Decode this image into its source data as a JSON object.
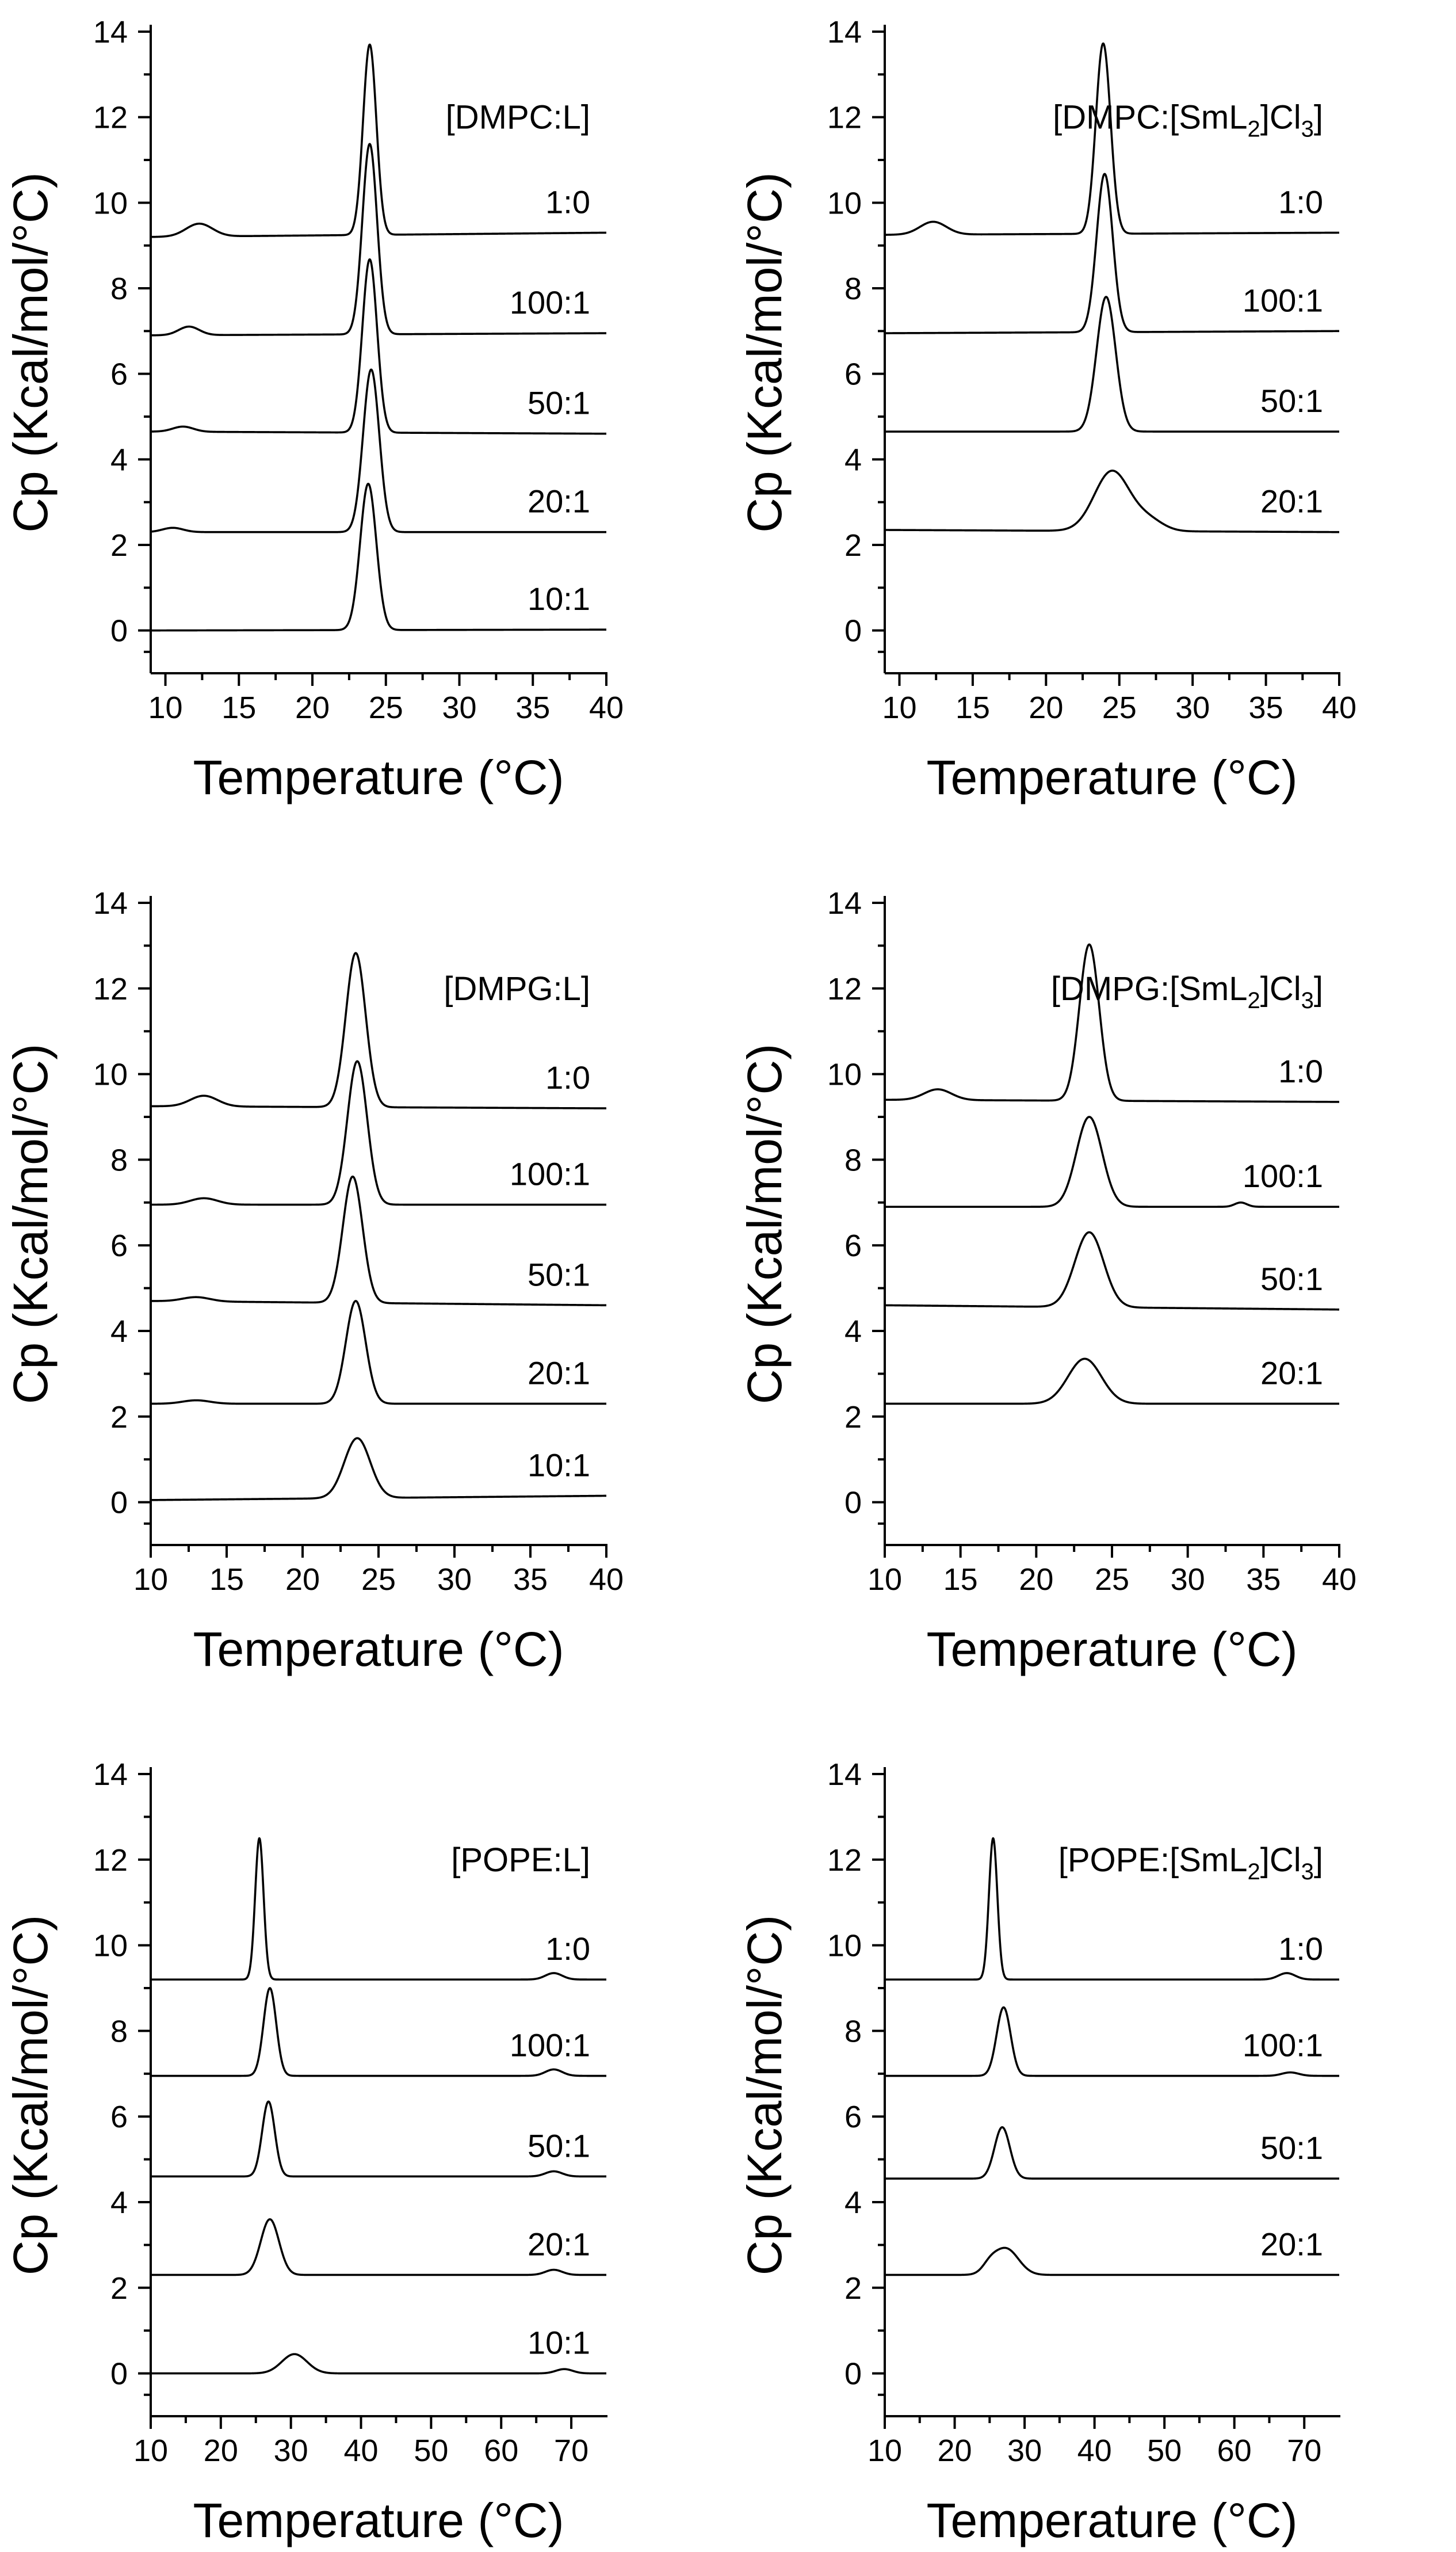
{
  "figure_title": "",
  "chart_data": [
    {
      "type": "line",
      "legend_label": "[DMPC:L]",
      "xlabel": "Temperature (°C)",
      "ylabel": "Cp (Kcal/mol/°C)",
      "xlim": [
        9,
        40
      ],
      "ylim": [
        -1,
        14
      ],
      "xticks": [
        10,
        15,
        20,
        25,
        30,
        35,
        40
      ],
      "xtick_labels": [
        "10",
        "15",
        "20",
        "25",
        "30",
        "35",
        "40"
      ],
      "yticks": [
        0,
        2,
        4,
        6,
        8,
        10,
        12,
        14
      ],
      "ytick_labels": [
        "0",
        "2",
        "4",
        "6",
        "8",
        "10",
        "12",
        "14"
      ],
      "series": [
        {
          "name": "1:0",
          "baseline": 9.2,
          "end_baseline": 9.3,
          "peak_x": 23.9,
          "peak_height": 4.45,
          "peak_width": 0.45,
          "bumps": [
            {
              "x": 12.3,
              "h": 0.3,
              "w": 0.9
            }
          ]
        },
        {
          "name": "100:1",
          "baseline": 6.9,
          "end_baseline": 6.95,
          "peak_x": 23.9,
          "peak_height": 4.45,
          "peak_width": 0.5,
          "bumps": [
            {
              "x": 11.6,
              "h": 0.2,
              "w": 0.7
            }
          ]
        },
        {
          "name": "50:1",
          "baseline": 4.65,
          "end_baseline": 4.6,
          "peak_x": 23.9,
          "peak_height": 4.05,
          "peak_width": 0.5,
          "bumps": [
            {
              "x": 11.2,
              "h": 0.12,
              "w": 0.7
            }
          ]
        },
        {
          "name": "20:1",
          "baseline": 2.3,
          "end_baseline": 2.3,
          "peak_x": 24.0,
          "peak_height": 3.8,
          "peak_width": 0.55,
          "bumps": [
            {
              "x": 10.5,
              "h": 0.1,
              "w": 0.7
            }
          ]
        },
        {
          "name": "10:1",
          "baseline": 0.0,
          "end_baseline": 0.02,
          "peak_x": 23.8,
          "peak_height": 3.42,
          "peak_width": 0.55,
          "bumps": []
        }
      ]
    },
    {
      "type": "line",
      "legend_label": "[DMPC:[SmL2]Cl3]",
      "legend_parts": [
        "[DMPC:[SmL",
        "2",
        "]Cl",
        "3",
        "]"
      ],
      "xlabel": "Temperature (°C)",
      "ylabel": "Cp (Kcal/mol/°C)",
      "xlim": [
        9,
        40
      ],
      "ylim": [
        -1,
        14
      ],
      "xticks": [
        10,
        15,
        20,
        25,
        30,
        35,
        40
      ],
      "xtick_labels": [
        "10",
        "15",
        "20",
        "25",
        "30",
        "35",
        "40"
      ],
      "yticks": [
        0,
        2,
        4,
        6,
        8,
        10,
        12,
        14
      ],
      "ytick_labels": [
        "0",
        "2",
        "4",
        "6",
        "8",
        "10",
        "12",
        "14"
      ],
      "series": [
        {
          "name": "1:0",
          "baseline": 9.25,
          "end_baseline": 9.3,
          "peak_x": 23.9,
          "peak_height": 4.45,
          "peak_width": 0.5,
          "bumps": [
            {
              "x": 12.3,
              "h": 0.3,
              "w": 0.9
            }
          ]
        },
        {
          "name": "100:1",
          "baseline": 6.95,
          "end_baseline": 7.0,
          "peak_x": 24.0,
          "peak_height": 3.7,
          "peak_width": 0.55,
          "bumps": []
        },
        {
          "name": "50:1",
          "baseline": 4.65,
          "end_baseline": 4.65,
          "peak_x": 24.1,
          "peak_height": 3.15,
          "peak_width": 0.65,
          "bumps": []
        },
        {
          "name": "20:1",
          "baseline": 2.35,
          "end_baseline": 2.3,
          "peak_x": 24.5,
          "peak_height": 1.4,
          "peak_width": 1.2,
          "bumps": [
            {
              "x": 27.0,
              "h": 0.25,
              "w": 1.0
            }
          ]
        }
      ]
    },
    {
      "type": "line",
      "legend_label": "[DMPG:L]",
      "xlabel": "Temperature (°C)",
      "ylabel": "Cp (Kcal/mol/°C)",
      "xlim": [
        10,
        40
      ],
      "ylim": [
        -1,
        14
      ],
      "xticks": [
        10,
        15,
        20,
        25,
        30,
        35,
        40
      ],
      "xtick_labels": [
        "10",
        "15",
        "20",
        "25",
        "30",
        "35",
        "40"
      ],
      "yticks": [
        0,
        2,
        4,
        6,
        8,
        10,
        12,
        14
      ],
      "ytick_labels": [
        "0",
        "2",
        "4",
        "6",
        "8",
        "10",
        "12",
        "14"
      ],
      "series": [
        {
          "name": "1:0",
          "baseline": 9.25,
          "end_baseline": 9.2,
          "peak_x": 23.5,
          "peak_height": 3.6,
          "peak_width": 0.65,
          "bumps": [
            {
              "x": 13.5,
              "h": 0.25,
              "w": 0.9
            }
          ]
        },
        {
          "name": "100:1",
          "baseline": 6.95,
          "end_baseline": 6.95,
          "peak_x": 23.6,
          "peak_height": 3.35,
          "peak_width": 0.65,
          "bumps": [
            {
              "x": 13.5,
              "h": 0.15,
              "w": 0.9
            }
          ]
        },
        {
          "name": "50:1",
          "baseline": 4.7,
          "end_baseline": 4.6,
          "peak_x": 23.3,
          "peak_height": 2.95,
          "peak_width": 0.65,
          "bumps": [
            {
              "x": 13.0,
              "h": 0.1,
              "w": 0.9
            }
          ]
        },
        {
          "name": "20:1",
          "baseline": 2.3,
          "end_baseline": 2.3,
          "peak_x": 23.5,
          "peak_height": 2.4,
          "peak_width": 0.65,
          "bumps": [
            {
              "x": 13.0,
              "h": 0.08,
              "w": 0.9
            }
          ]
        },
        {
          "name": "10:1",
          "baseline": 0.05,
          "end_baseline": 0.15,
          "peak_x": 23.6,
          "peak_height": 1.4,
          "peak_width": 0.85,
          "bumps": []
        }
      ]
    },
    {
      "type": "line",
      "legend_label": "[DMPG:[SmL2]Cl3]",
      "legend_parts": [
        "[DMPG:[SmL",
        "2",
        "]Cl",
        "3",
        "]"
      ],
      "xlabel": "Temperature (°C)",
      "ylabel": "Cp (Kcal/mol/°C)",
      "xlim": [
        10,
        40
      ],
      "ylim": [
        -1,
        14
      ],
      "xticks": [
        10,
        15,
        20,
        25,
        30,
        35,
        40
      ],
      "xtick_labels": [
        "10",
        "15",
        "20",
        "25",
        "30",
        "35",
        "40"
      ],
      "yticks": [
        0,
        2,
        4,
        6,
        8,
        10,
        12,
        14
      ],
      "ytick_labels": [
        "0",
        "2",
        "4",
        "6",
        "8",
        "10",
        "12",
        "14"
      ],
      "series": [
        {
          "name": "1:0",
          "baseline": 9.4,
          "end_baseline": 9.35,
          "peak_x": 23.5,
          "peak_height": 3.65,
          "peak_width": 0.65,
          "bumps": [
            {
              "x": 13.5,
              "h": 0.25,
              "w": 0.9
            }
          ]
        },
        {
          "name": "100:1",
          "baseline": 6.9,
          "end_baseline": 6.9,
          "peak_x": 23.5,
          "peak_height": 2.1,
          "peak_width": 0.85,
          "bumps": [
            {
              "x": 33.5,
              "h": 0.1,
              "w": 0.4
            }
          ]
        },
        {
          "name": "50:1",
          "baseline": 4.6,
          "end_baseline": 4.5,
          "peak_x": 23.5,
          "peak_height": 1.75,
          "peak_width": 0.95,
          "bumps": []
        },
        {
          "name": "20:1",
          "baseline": 2.3,
          "end_baseline": 2.3,
          "peak_x": 23.2,
          "peak_height": 1.05,
          "peak_width": 1.1,
          "bumps": []
        }
      ]
    },
    {
      "type": "line",
      "legend_label": "[POPE:L]",
      "xlabel": "Temperature (°C)",
      "ylabel": "Cp (Kcal/mol/°C)",
      "xlim": [
        10,
        75
      ],
      "ylim": [
        -1,
        14
      ],
      "xticks": [
        10,
        20,
        30,
        40,
        50,
        60,
        70
      ],
      "xtick_labels": [
        "10",
        "20",
        "30",
        "40",
        "50",
        "60",
        "70"
      ],
      "yticks": [
        0,
        2,
        4,
        6,
        8,
        10,
        12,
        14
      ],
      "ytick_labels": [
        "0",
        "2",
        "4",
        "6",
        "8",
        "10",
        "12",
        "14"
      ],
      "series": [
        {
          "name": "1:0",
          "baseline": 9.2,
          "end_baseline": 9.2,
          "peak_x": 25.5,
          "peak_height": 3.3,
          "peak_width": 0.6,
          "bumps": [
            {
              "x": 67.5,
              "h": 0.15,
              "w": 1.2
            }
          ]
        },
        {
          "name": "100:1",
          "baseline": 6.95,
          "end_baseline": 6.95,
          "peak_x": 27.0,
          "peak_height": 2.05,
          "peak_width": 0.9,
          "bumps": [
            {
              "x": 67.5,
              "h": 0.15,
              "w": 1.2
            }
          ]
        },
        {
          "name": "50:1",
          "baseline": 4.6,
          "end_baseline": 4.6,
          "peak_x": 26.8,
          "peak_height": 1.75,
          "peak_width": 0.9,
          "bumps": [
            {
              "x": 67.5,
              "h": 0.12,
              "w": 1.2
            }
          ]
        },
        {
          "name": "20:1",
          "baseline": 2.3,
          "end_baseline": 2.3,
          "peak_x": 27.0,
          "peak_height": 1.3,
          "peak_width": 1.3,
          "bumps": [
            {
              "x": 67.5,
              "h": 0.12,
              "w": 1.2
            }
          ]
        },
        {
          "name": "10:1",
          "baseline": 0.0,
          "end_baseline": 0.0,
          "peak_x": 30.5,
          "peak_height": 0.45,
          "peak_width": 1.8,
          "bumps": [
            {
              "x": 69.0,
              "h": 0.1,
              "w": 1.2
            }
          ]
        }
      ]
    },
    {
      "type": "line",
      "legend_label": "[POPE:[SmL2]Cl3]",
      "legend_parts": [
        "[POPE:[SmL",
        "2",
        "]Cl",
        "3",
        "]"
      ],
      "xlabel": "Temperature (°C)",
      "ylabel": "Cp (Kcal/mol/°C)",
      "xlim": [
        10,
        75
      ],
      "ylim": [
        -1,
        14
      ],
      "xticks": [
        10,
        20,
        30,
        40,
        50,
        60,
        70
      ],
      "xtick_labels": [
        "10",
        "20",
        "30",
        "40",
        "50",
        "60",
        "70"
      ],
      "yticks": [
        0,
        2,
        4,
        6,
        8,
        10,
        12,
        14
      ],
      "ytick_labels": [
        "0",
        "2",
        "4",
        "6",
        "8",
        "10",
        "12",
        "14"
      ],
      "series": [
        {
          "name": "1:0",
          "baseline": 9.2,
          "end_baseline": 9.2,
          "peak_x": 25.5,
          "peak_height": 3.3,
          "peak_width": 0.6,
          "bumps": [
            {
              "x": 67.5,
              "h": 0.15,
              "w": 1.2
            }
          ]
        },
        {
          "name": "100:1",
          "baseline": 6.95,
          "end_baseline": 6.95,
          "peak_x": 27.0,
          "peak_height": 1.6,
          "peak_width": 1.0,
          "bumps": [
            {
              "x": 68.0,
              "h": 0.08,
              "w": 1.2
            }
          ]
        },
        {
          "name": "50:1",
          "baseline": 4.55,
          "end_baseline": 4.55,
          "peak_x": 26.8,
          "peak_height": 1.2,
          "peak_width": 1.1,
          "bumps": []
        },
        {
          "name": "20:1",
          "baseline": 2.3,
          "end_baseline": 2.3,
          "peak_x": 27.3,
          "peak_height": 0.62,
          "peak_width": 1.8,
          "bumps": [
            {
              "x": 25.0,
              "h": 0.15,
              "w": 1.0
            }
          ]
        }
      ]
    }
  ]
}
